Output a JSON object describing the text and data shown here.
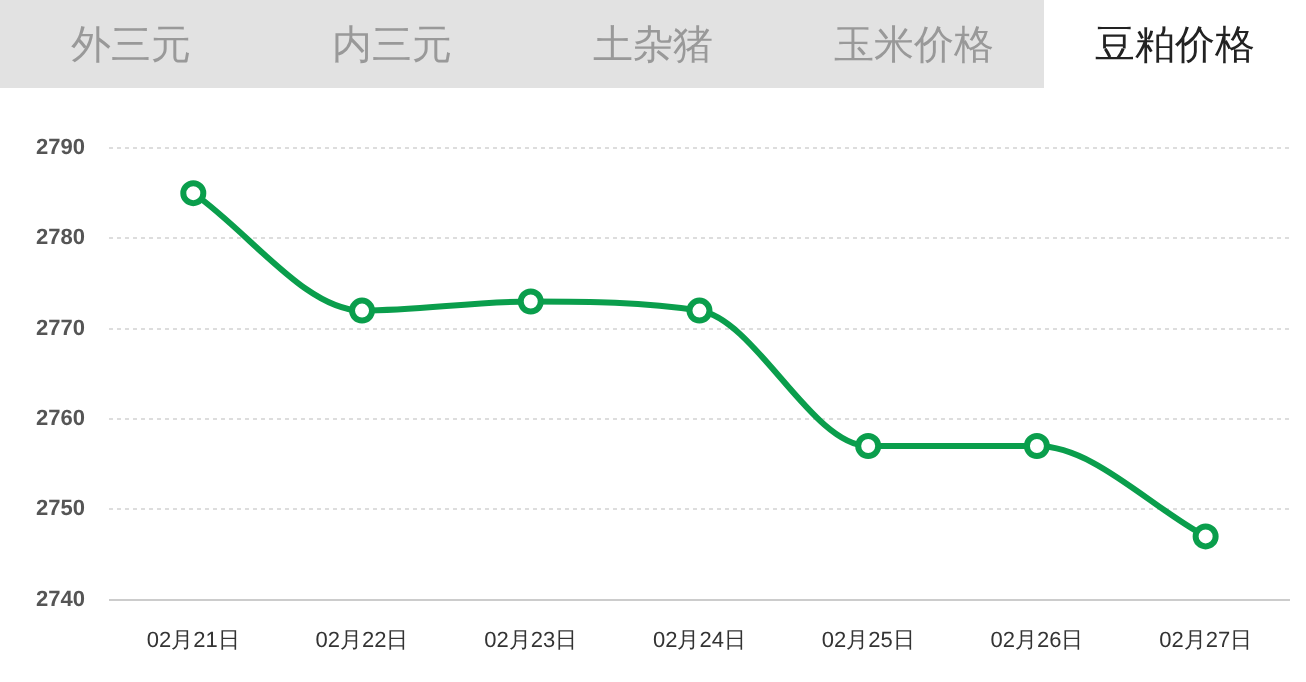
{
  "chart_data": {
    "type": "line",
    "title": "豆粕价格",
    "annotations": [
      "外三元",
      "内三元",
      "土杂猪",
      "玉米价格"
    ],
    "categories": [
      "02月21日",
      "02月22日",
      "02月23日",
      "02月24日",
      "02月25日",
      "02月26日",
      "02月27日"
    ],
    "series": [
      {
        "color": "#0a9e4c",
        "values": [
          2785,
          2772,
          2773,
          2772,
          2757,
          2757,
          2747
        ]
      }
    ],
    "ylim": [
      2740,
      2790
    ],
    "yticks": [
      2740,
      2750,
      2760,
      2770,
      2780,
      2790
    ],
    "grid": "y",
    "legend": false,
    "marker": "circle",
    "line_style": "solid"
  }
}
